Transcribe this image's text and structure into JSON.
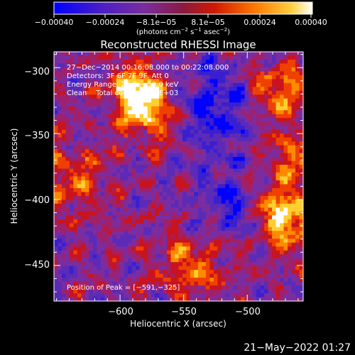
{
  "colorbar": {
    "tick_labels": [
      "−0.00040",
      "−0.00024",
      "−8.1e−05",
      "8.1e−05",
      "0.00024",
      "0.00040"
    ],
    "range": [
      -0.0004,
      0.0004
    ],
    "units": {
      "prefix": "(photons cm",
      "exp1": "−2",
      "mid1": " s",
      "exp2": "−1",
      "mid2": " asec",
      "exp3": "−2",
      "suffix": ")"
    }
  },
  "chart_data": {
    "type": "heatmap",
    "title": "Reconstructed RHESSI Image",
    "xlabel": "Heliocentric X (arcsec)",
    "ylabel": "Heliocentric Y (arcsec)",
    "xlim": [
      -652,
      -456
    ],
    "ylim": [
      -477,
      -288
    ],
    "x_ticks": [
      -600,
      -550,
      -500
    ],
    "y_ticks": [
      -300,
      -350,
      -400,
      -450
    ],
    "x_tick_labels": [
      "−600",
      "−550",
      "−500"
    ],
    "y_tick_labels": [
      "−300",
      "−350",
      "−400",
      "−450"
    ],
    "annotations": [
      "27−Dec−2014 00:16:08.000 to 00:22:08.000",
      "Detectors: 3F 6F 7F 9F, Att 0",
      "Energy Range: 25.0 − 50.0 keV",
      "Clean    Total counts: 4.66E+03"
    ],
    "peak_label": "Position of Peak = [−591,−325]",
    "peak_position": [
      -591,
      -325
    ],
    "colormap": [
      "#0000ff",
      "#3a1fd0",
      "#5b2bb8",
      "#7b2da0",
      "#a0206a",
      "#c8141e",
      "#f04000",
      "#ff8a00",
      "#ffcf30",
      "#ffffff"
    ]
  },
  "footer": {
    "timestamp": "21−May−2022 01:27"
  }
}
